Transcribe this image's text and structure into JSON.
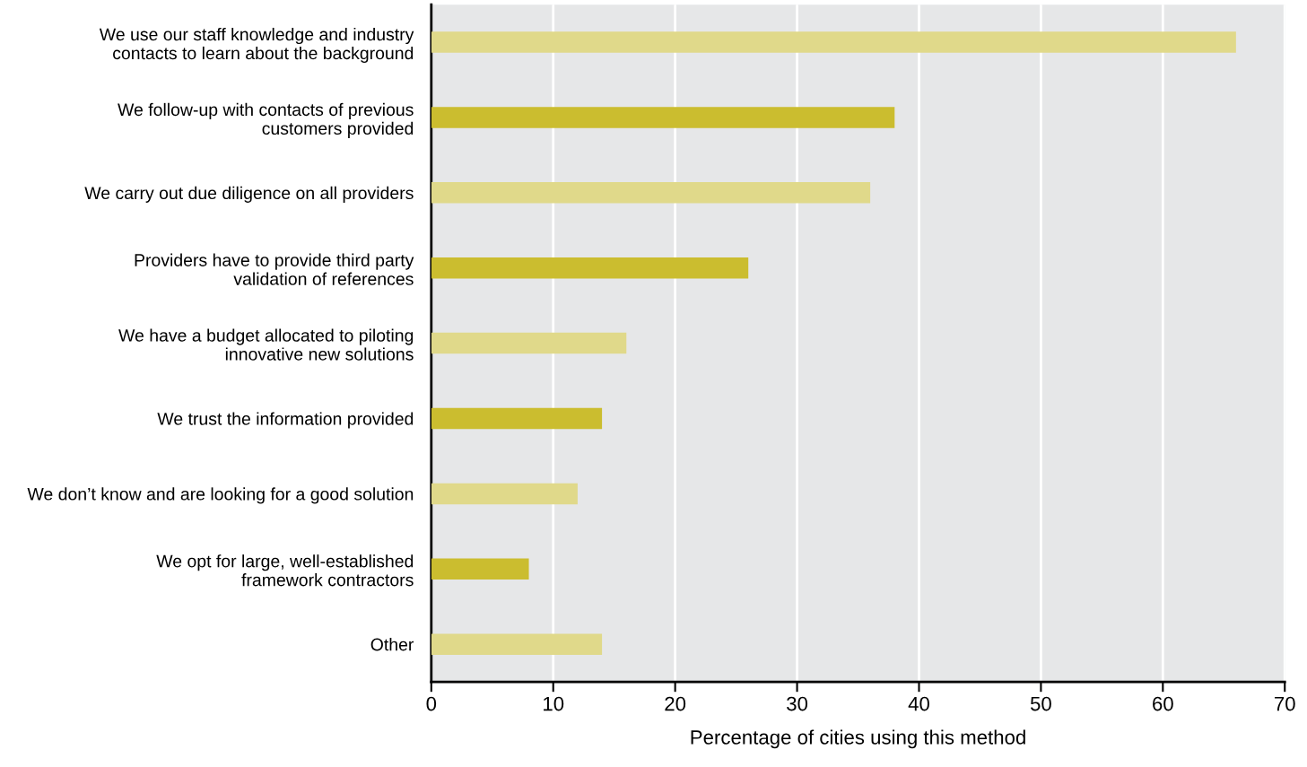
{
  "chart_data": {
    "type": "bar",
    "orientation": "horizontal",
    "categories": [
      "We use our staff knowledge and industry\ncontacts to learn about the background",
      "We follow-up with contacts of previous\ncustomers provided",
      "We carry out due diligence on all providers",
      "Providers have to provide third party\nvalidation of references",
      "We have a budget allocated to piloting\ninnovative new solutions",
      "We trust the information provided",
      "We don’t know and are looking for a good solution",
      "We opt for large, well-established\nframework contractors",
      "Other"
    ],
    "values": [
      66,
      38,
      36,
      26,
      16,
      14,
      12,
      8,
      14
    ],
    "colors": [
      "#e0d98a",
      "#cbbd2f",
      "#e0d98a",
      "#cbbd2f",
      "#e0d98a",
      "#cbbd2f",
      "#e0d98a",
      "#cbbd2f",
      "#e0d98a"
    ],
    "xlabel": "Percentage of cities using this method",
    "xlim": [
      0,
      70
    ],
    "xticks": [
      0,
      10,
      20,
      30,
      40,
      50,
      60,
      70
    ],
    "grid": "x",
    "legend": false
  }
}
